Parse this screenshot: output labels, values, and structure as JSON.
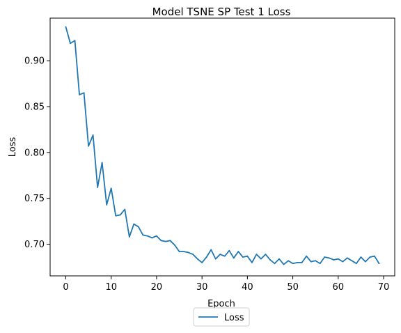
{
  "chart_data": {
    "type": "line",
    "title": "Model TSNE SP Test 1 Loss",
    "xlabel": "Epoch",
    "ylabel": "Loss",
    "xlim": [
      -3.45,
      72.45
    ],
    "ylim": [
      0.6655,
      0.9465
    ],
    "xticks": [
      0,
      10,
      20,
      30,
      40,
      50,
      60,
      70
    ],
    "xtick_labels": [
      "0",
      "10",
      "20",
      "30",
      "40",
      "50",
      "60",
      "70"
    ],
    "yticks": [
      0.7,
      0.75,
      0.8,
      0.85,
      0.9
    ],
    "ytick_labels": [
      "0.70",
      "0.75",
      "0.80",
      "0.85",
      "0.90"
    ],
    "grid": false,
    "legend_position": "bottom-center",
    "series": [
      {
        "name": "Loss",
        "color": "#1f77b4",
        "x": [
          0,
          1,
          2,
          3,
          4,
          5,
          6,
          7,
          8,
          9,
          10,
          11,
          12,
          13,
          14,
          15,
          16,
          17,
          18,
          19,
          20,
          21,
          22,
          23,
          24,
          25,
          26,
          27,
          28,
          29,
          30,
          31,
          32,
          33,
          34,
          35,
          36,
          37,
          38,
          39,
          40,
          41,
          42,
          43,
          44,
          45,
          46,
          47,
          48,
          49,
          50,
          51,
          52,
          53,
          54,
          55,
          56,
          57,
          58,
          59,
          60,
          61,
          62,
          63,
          64,
          65,
          66,
          67,
          68,
          69
        ],
        "values": [
          0.937,
          0.919,
          0.922,
          0.863,
          0.865,
          0.807,
          0.819,
          0.762,
          0.789,
          0.743,
          0.761,
          0.731,
          0.732,
          0.738,
          0.708,
          0.722,
          0.719,
          0.71,
          0.709,
          0.707,
          0.709,
          0.704,
          0.703,
          0.704,
          0.699,
          0.692,
          0.692,
          0.691,
          0.689,
          0.684,
          0.68,
          0.686,
          0.694,
          0.684,
          0.689,
          0.687,
          0.693,
          0.685,
          0.692,
          0.686,
          0.687,
          0.68,
          0.689,
          0.684,
          0.689,
          0.683,
          0.679,
          0.684,
          0.678,
          0.682,
          0.679,
          0.68,
          0.68,
          0.687,
          0.681,
          0.682,
          0.679,
          0.686,
          0.685,
          0.683,
          0.684,
          0.681,
          0.685,
          0.682,
          0.679,
          0.686,
          0.681,
          0.686,
          0.687,
          0.679
        ]
      }
    ]
  }
}
